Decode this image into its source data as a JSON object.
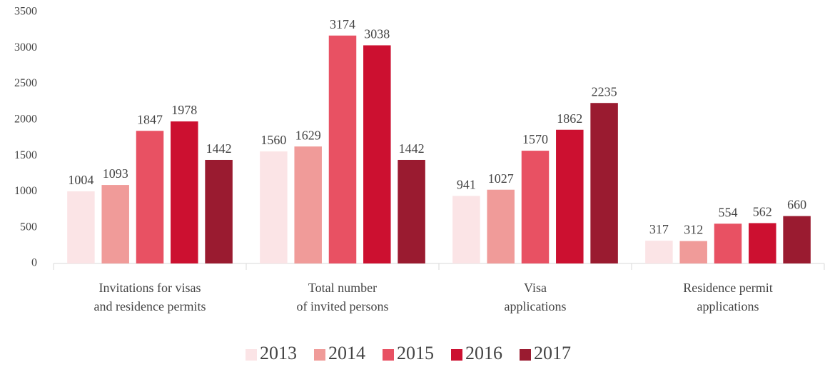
{
  "chart_data": {
    "type": "bar",
    "categories": [
      "Invitations for visas\nand residence permits",
      "Total number\nof invited persons",
      "Visa\napplications",
      "Residence permit\napplications"
    ],
    "series": [
      {
        "name": "2013",
        "color": "#fbe4e6",
        "values": [
          1004,
          1560,
          941,
          317
        ]
      },
      {
        "name": "2014",
        "color": "#f09b99",
        "values": [
          1093,
          1629,
          1027,
          312
        ]
      },
      {
        "name": "2015",
        "color": "#e85163",
        "values": [
          1847,
          3174,
          1570,
          554
        ]
      },
      {
        "name": "2016",
        "color": "#cc1030",
        "values": [
          1978,
          3038,
          1862,
          562
        ]
      },
      {
        "name": "2017",
        "color": "#9a1b30",
        "values": [
          1442,
          1442,
          2235,
          660
        ]
      }
    ],
    "ylim": [
      0,
      3500
    ],
    "yticks": [
      0,
      500,
      1000,
      1500,
      2000,
      2500,
      3000,
      3500
    ],
    "grid": false,
    "legend": "bottom"
  }
}
